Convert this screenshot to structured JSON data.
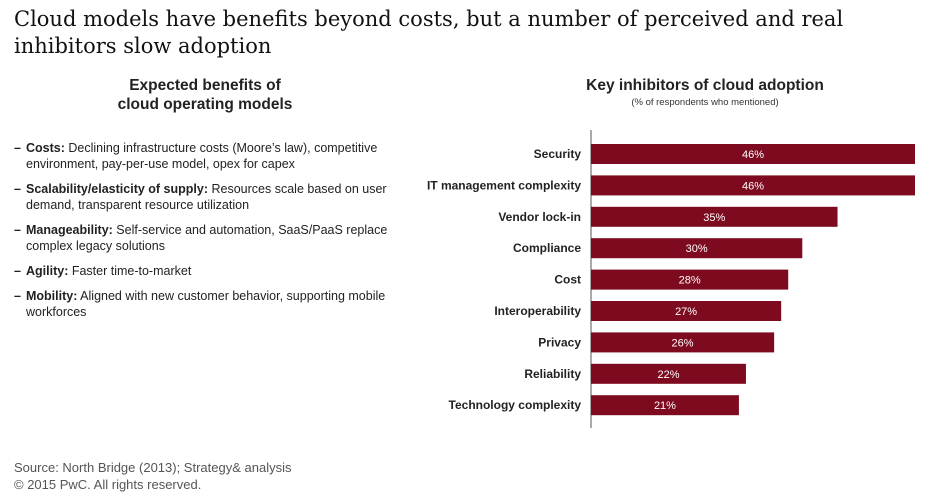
{
  "headline": "Cloud models have benefits beyond costs, but a number of perceived and real inhibitors slow adoption",
  "benefits": {
    "title_line1": "Expected benefits of",
    "title_line2": "cloud operating models",
    "items": [
      {
        "term": "Costs:",
        "text": " Declining infrastructure costs (Moore’s law), competitive environment, pay-per-use model, opex for capex"
      },
      {
        "term": "Scalability/elasticity of supply:",
        "text": " Resources scale based on user demand, transparent resource utilization"
      },
      {
        "term": "Manageability:",
        "text": " Self-service and automation, SaaS/PaaS replace complex legacy solutions"
      },
      {
        "term": "Agility:",
        "text": " Faster time-to-market"
      },
      {
        "term": "Mobility:",
        "text": " Aligned with new customer behavior, supporting mobile workforces"
      }
    ]
  },
  "chart_data": {
    "type": "bar",
    "orientation": "horizontal",
    "title": "Key inhibitors of cloud adoption",
    "subtitle": "(% of respondents who mentioned)",
    "categories": [
      "Security",
      "IT management complexity",
      "Vendor lock-in",
      "Compliance",
      "Cost",
      "Interoperability",
      "Privacy",
      "Reliability",
      "Technology complexity"
    ],
    "values": [
      46,
      46,
      35,
      30,
      28,
      27,
      26,
      22,
      21
    ],
    "data_labels": [
      "46%",
      "46%",
      "35%",
      "30%",
      "28%",
      "27%",
      "26%",
      "22%",
      "21%"
    ],
    "xlim": [
      0,
      46
    ],
    "bar_color": "#7d0a1f",
    "label_color": "#ffffff",
    "grid": false
  },
  "footer": {
    "source": "Source: North Bridge (2013); Strategy& analysis",
    "copyright": "© 2015 PwC. All rights reserved."
  }
}
